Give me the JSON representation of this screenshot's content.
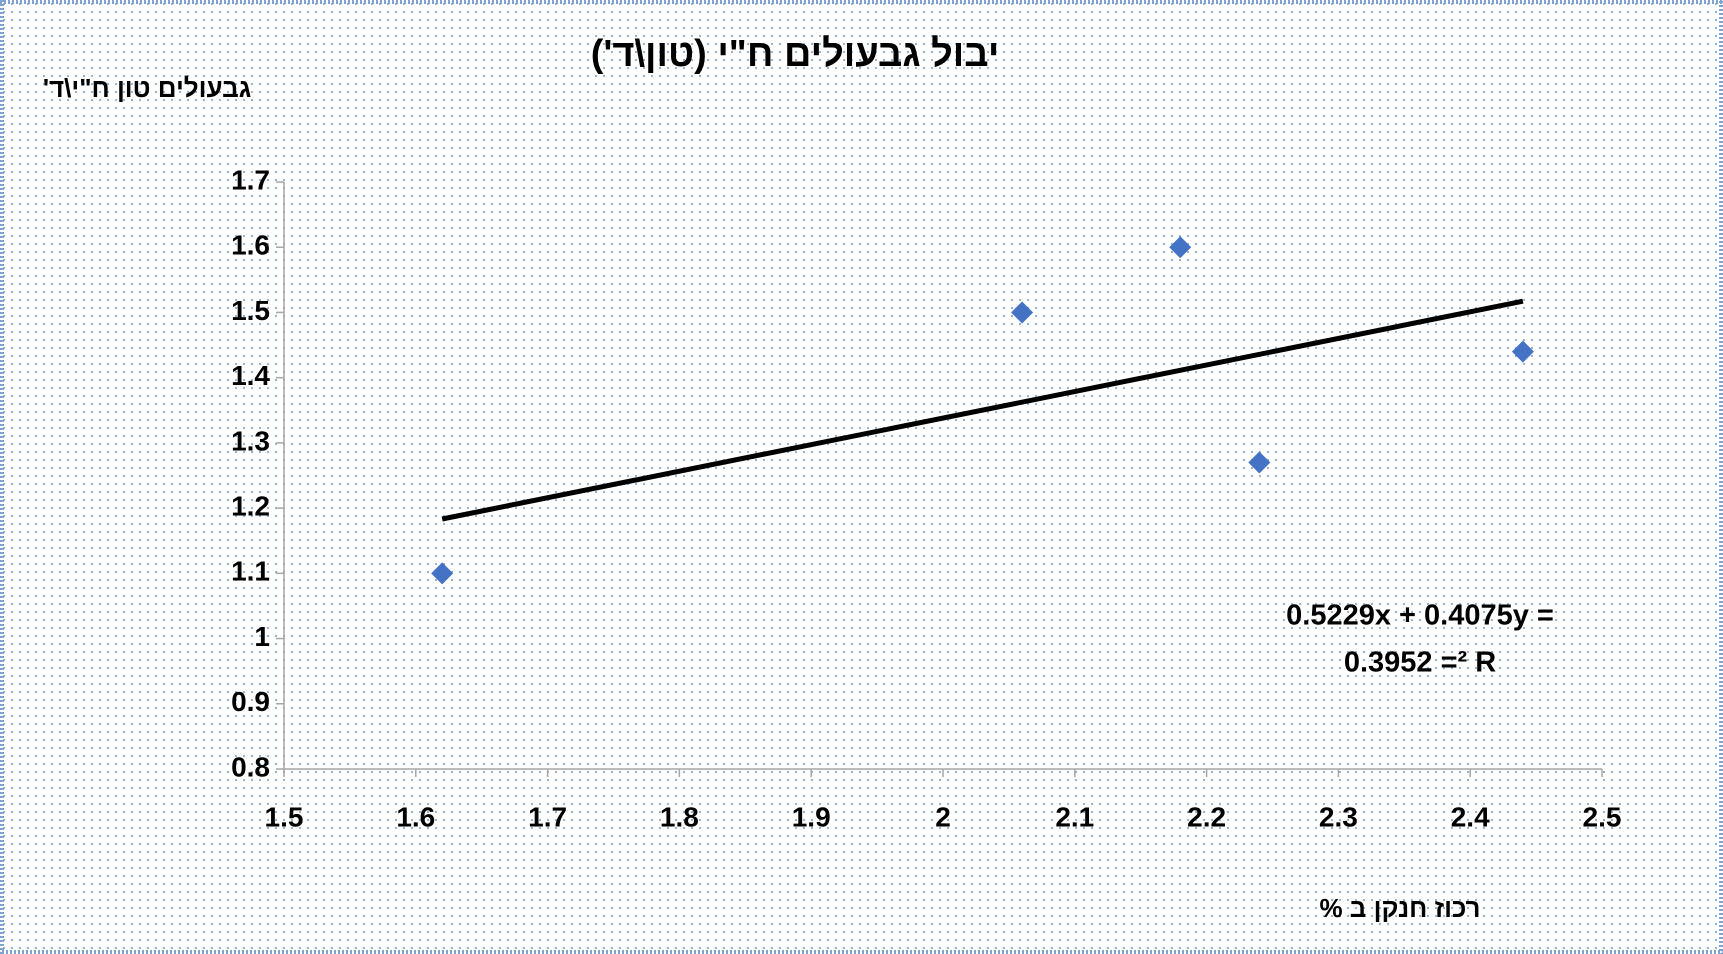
{
  "chart_data": {
    "type": "scatter",
    "title": "יבול גבעולים ח\"י (טון\\ד')",
    "y_label": "גבעולים טון ח\"י\\ד'",
    "x_label": "רכוז חנקן ב %",
    "x": [
      1.62,
      2.06,
      2.18,
      2.24,
      2.44
    ],
    "values": [
      1.1,
      1.5,
      1.6,
      1.27,
      1.44
    ],
    "color": "#4472c4",
    "trendline": {
      "x": [
        1.62,
        2.44
      ],
      "values": [
        1.1833,
        1.5172
      ],
      "color": "#000000"
    },
    "annotations": [
      "0.5229x + 0.4075y =",
      "0.3952 =² R"
    ],
    "xlim": [
      1.5,
      2.5
    ],
    "xticks": [
      1.5,
      1.6,
      1.7,
      1.8,
      1.9,
      2,
      2.1,
      2.2,
      2.3,
      2.4,
      2.5
    ],
    "ylim": [
      0.8,
      1.7
    ],
    "yticks": [
      0.8,
      0.9,
      1,
      1.1,
      1.2,
      1.3,
      1.4,
      1.5,
      1.6,
      1.7
    ]
  }
}
